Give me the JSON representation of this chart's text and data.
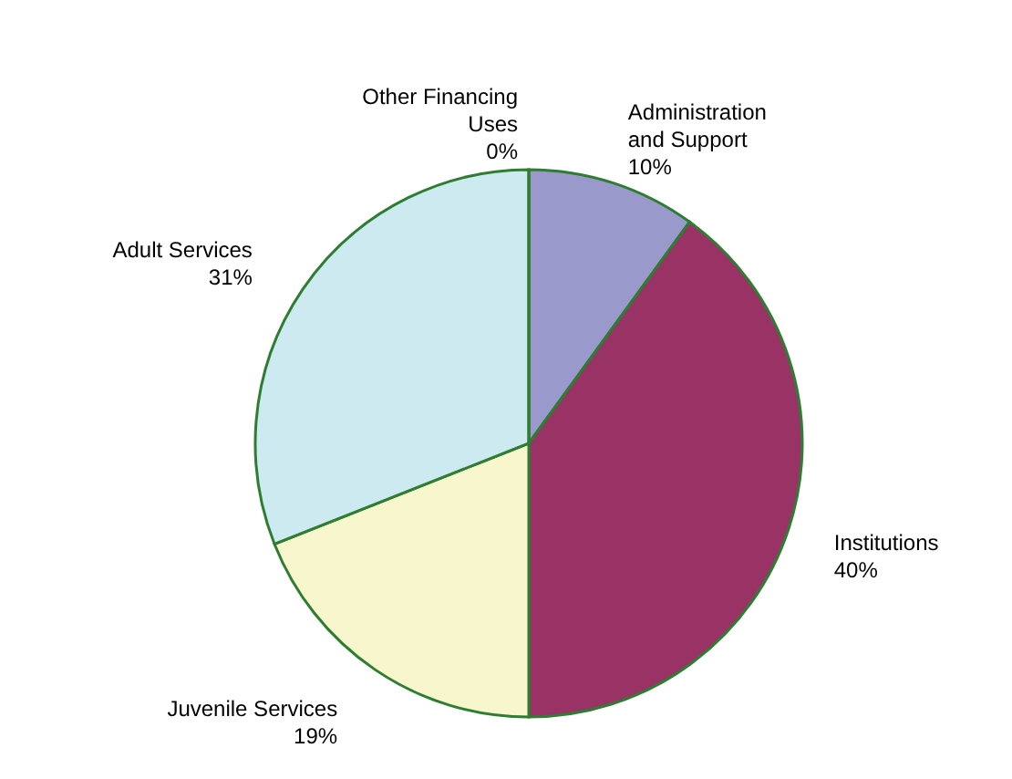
{
  "chart_data": {
    "type": "pie",
    "categories": [
      "Administration and Support",
      "Institutions",
      "Juvenile Services",
      "Adult Services",
      "Other Financing Uses"
    ],
    "values": [
      10,
      40,
      19,
      31,
      0
    ],
    "colors": [
      "#9999cc",
      "#993366",
      "#f8f6cc",
      "#cdeaf0",
      "#333366"
    ],
    "value_labels": [
      "10%",
      "40%",
      "19%",
      "31%",
      "0%"
    ]
  }
}
